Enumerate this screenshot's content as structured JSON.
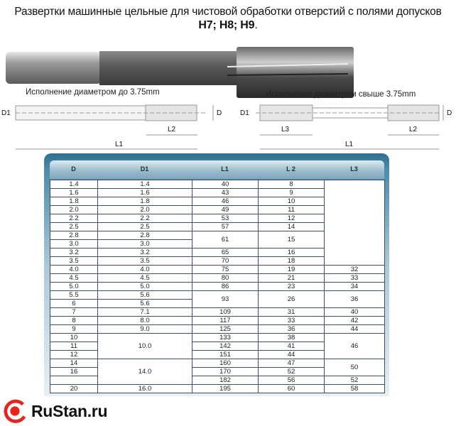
{
  "title": {
    "line1": "Развертки машинные цельные для чистовой обработки отверстий с полями допусков",
    "line2": "H7; H8; H9",
    "line2_suffix": "."
  },
  "drawings": {
    "left_caption": "Исполнение диаметром до 3.75mm",
    "right_caption": "Исполнение диаметром свыше  3.75mm",
    "labels": {
      "D1": "D1",
      "D": "D",
      "L1": "L1",
      "L2": "L2",
      "L3": "L3"
    }
  },
  "table": {
    "headers": [
      "D",
      "D1",
      "L1",
      "L 2",
      "L3"
    ],
    "row_count": 25,
    "columns": [
      [
        {
          "v": "1.4"
        },
        {
          "v": "1.6"
        },
        {
          "v": "1.8"
        },
        {
          "v": "2.0"
        },
        {
          "v": "2.2"
        },
        {
          "v": "2.5"
        },
        {
          "v": "2.8"
        },
        {
          "v": "3.0"
        },
        {
          "v": "3.2"
        },
        {
          "v": "3.5"
        },
        {
          "v": "4.0"
        },
        {
          "v": "4.5"
        },
        {
          "v": "5.0"
        },
        {
          "v": "5.5"
        },
        {
          "v": "6"
        },
        {
          "v": "7"
        },
        {
          "v": "8"
        },
        {
          "v": "9"
        },
        {
          "v": "10"
        },
        {
          "v": "11"
        },
        {
          "v": "12"
        },
        {
          "v": "14"
        },
        {
          "v": "16"
        },
        {
          "v": ""
        },
        {
          "v": "20"
        }
      ],
      [
        {
          "v": "1.4"
        },
        {
          "v": "1.6"
        },
        {
          "v": "1.8"
        },
        {
          "v": "2.0"
        },
        {
          "v": "2.2"
        },
        {
          "v": "2.5"
        },
        {
          "v": "2.8"
        },
        {
          "v": "3.0"
        },
        {
          "v": "3.2"
        },
        {
          "v": "3.5"
        },
        {
          "v": "4.0"
        },
        {
          "v": "4.5"
        },
        {
          "v": "5.0"
        },
        {
          "v": "5.6"
        },
        {
          "v": "5.6"
        },
        {
          "v": "7.1"
        },
        {
          "v": "8.0"
        },
        {
          "v": "9.0"
        },
        {
          "v": "10.0",
          "span": 3
        },
        {
          "v": "14.0",
          "span": 3
        },
        {
          "v": "16.0"
        }
      ],
      [
        {
          "v": "40"
        },
        {
          "v": "43"
        },
        {
          "v": "46"
        },
        {
          "v": "49"
        },
        {
          "v": "53"
        },
        {
          "v": "57"
        },
        {
          "v": "61",
          "span": 2
        },
        {
          "v": "65"
        },
        {
          "v": "70"
        },
        {
          "v": "75"
        },
        {
          "v": "80"
        },
        {
          "v": "86"
        },
        {
          "v": "93",
          "span": 2
        },
        {
          "v": "109"
        },
        {
          "v": "117"
        },
        {
          "v": "125"
        },
        {
          "v": "133"
        },
        {
          "v": "142"
        },
        {
          "v": "151"
        },
        {
          "v": "160"
        },
        {
          "v": "170"
        },
        {
          "v": "182"
        },
        {
          "v": "195"
        }
      ],
      [
        {
          "v": "8"
        },
        {
          "v": "9"
        },
        {
          "v": "10"
        },
        {
          "v": "11"
        },
        {
          "v": "12"
        },
        {
          "v": "14"
        },
        {
          "v": "15",
          "span": 2
        },
        {
          "v": "16"
        },
        {
          "v": "18"
        },
        {
          "v": "19"
        },
        {
          "v": "21"
        },
        {
          "v": "23"
        },
        {
          "v": "26",
          "span": 2
        },
        {
          "v": "31"
        },
        {
          "v": "33"
        },
        {
          "v": "36"
        },
        {
          "v": "38"
        },
        {
          "v": "41"
        },
        {
          "v": "44"
        },
        {
          "v": "47"
        },
        {
          "v": "52"
        },
        {
          "v": "56"
        },
        {
          "v": "60"
        }
      ],
      [
        {
          "v": "",
          "span": 10
        },
        {
          "v": "32"
        },
        {
          "v": "33"
        },
        {
          "v": "34"
        },
        {
          "v": "36",
          "span": 2
        },
        {
          "v": "40"
        },
        {
          "v": "42"
        },
        {
          "v": "44"
        },
        {
          "v": "46",
          "span": 3
        },
        {
          "v": "50",
          "span": 2
        },
        {
          "v": "52"
        },
        {
          "v": "58"
        }
      ]
    ]
  },
  "logo": {
    "text": "RuStan.ru",
    "color": "#e8231b"
  }
}
